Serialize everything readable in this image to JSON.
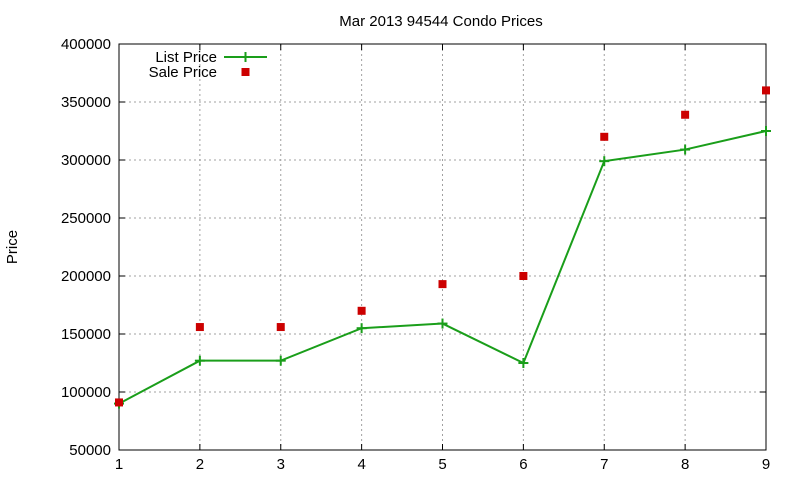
{
  "chart_data": {
    "type": "line",
    "title": "Mar 2013 94544 Condo Prices",
    "xlabel": "",
    "ylabel": "Price",
    "x": [
      1,
      2,
      3,
      4,
      5,
      6,
      7,
      8,
      9
    ],
    "xlim": [
      1,
      9
    ],
    "ylim": [
      50000,
      400000
    ],
    "x_ticks": [
      1,
      2,
      3,
      4,
      5,
      6,
      7,
      8,
      9
    ],
    "y_ticks": [
      50000,
      100000,
      150000,
      200000,
      250000,
      300000,
      350000,
      400000
    ],
    "grid": true,
    "legend_position": "top-left",
    "series": [
      {
        "name": "List Price",
        "kind": "line",
        "marker": "plus",
        "color": "#1a9e1a",
        "values": [
          90000,
          127000,
          127000,
          155000,
          159000,
          125000,
          299000,
          309000,
          325000
        ]
      },
      {
        "name": "Sale Price",
        "kind": "scatter",
        "marker": "square",
        "color": "#cc0000",
        "values": [
          91000,
          156000,
          156000,
          170000,
          193000,
          200000,
          320000,
          339000,
          360000
        ]
      }
    ]
  }
}
